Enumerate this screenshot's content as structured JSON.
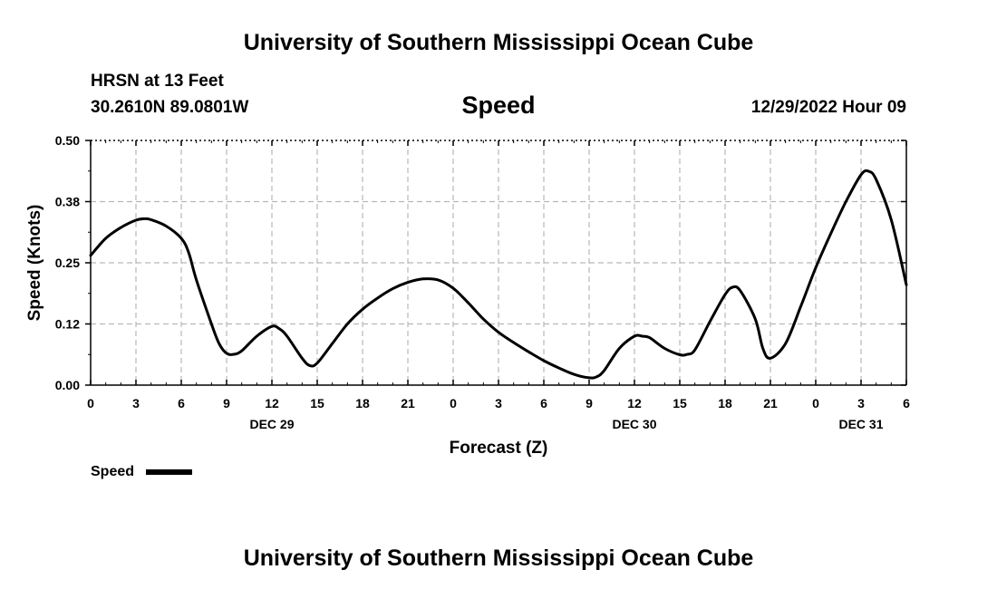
{
  "header": {
    "title": "University of Southern Mississippi Ocean Cube",
    "station": "HRSN at 13 Feet",
    "coords": "30.2610N  89.0801W",
    "param": "Speed",
    "datetime": "12/29/2022 Hour 09",
    "footer_title": "University of Southern Mississippi Ocean Cube"
  },
  "chart_data": {
    "type": "line",
    "title": "Speed",
    "xlabel": "Forecast (Z)",
    "ylabel": "Speed (Knots)",
    "ylim": [
      0,
      0.5
    ],
    "xlim": [
      0,
      54
    ],
    "y_ticks": [
      0.0,
      0.125,
      0.25,
      0.375,
      0.5
    ],
    "y_tick_labels": [
      "0.00",
      "0.12",
      "0.25",
      "0.38",
      "0.50"
    ],
    "x_ticks": [
      0,
      3,
      6,
      9,
      12,
      15,
      18,
      21,
      24,
      27,
      30,
      33,
      36,
      39,
      42,
      45,
      48,
      51,
      54
    ],
    "x_tick_labels": [
      "0",
      "3",
      "6",
      "9",
      "12",
      "15",
      "18",
      "21",
      "0",
      "3",
      "6",
      "9",
      "12",
      "15",
      "18",
      "21",
      "0",
      "3",
      "6"
    ],
    "date_labels": [
      {
        "x": 12,
        "label": "DEC 29"
      },
      {
        "x": 36,
        "label": "DEC 30"
      },
      {
        "x": 51,
        "label": "DEC 31"
      }
    ],
    "grid": true,
    "legend": {
      "placement": "bottom-left",
      "label": "Speed"
    },
    "series": [
      {
        "name": "Speed",
        "color": "#000000",
        "x": [
          0,
          1,
          2,
          3,
          3.6,
          4,
          5,
          6,
          6.5,
          7,
          8,
          8.5,
          9,
          9.5,
          10,
          11,
          12,
          12.5,
          13,
          14,
          14.5,
          15,
          16,
          17,
          18,
          19,
          20,
          21,
          22,
          23,
          24,
          25,
          26,
          27,
          28,
          29,
          30,
          31,
          32,
          33,
          33.5,
          34,
          35,
          36,
          36.5,
          37,
          38,
          39,
          39.5,
          40,
          41,
          42,
          42.5,
          43,
          44,
          44.5,
          45,
          46,
          47,
          48,
          49,
          50,
          51,
          51.5,
          52,
          53,
          54
        ],
        "values": [
          0.265,
          0.3,
          0.322,
          0.337,
          0.34,
          0.338,
          0.325,
          0.3,
          0.27,
          0.215,
          0.125,
          0.085,
          0.065,
          0.063,
          0.07,
          0.1,
          0.12,
          0.115,
          0.1,
          0.055,
          0.04,
          0.045,
          0.085,
          0.125,
          0.155,
          0.178,
          0.197,
          0.21,
          0.217,
          0.215,
          0.198,
          0.168,
          0.135,
          0.108,
          0.087,
          0.068,
          0.05,
          0.035,
          0.022,
          0.015,
          0.017,
          0.03,
          0.075,
          0.1,
          0.1,
          0.097,
          0.075,
          0.062,
          0.063,
          0.072,
          0.13,
          0.185,
          0.2,
          0.193,
          0.135,
          0.075,
          0.055,
          0.085,
          0.16,
          0.24,
          0.31,
          0.375,
          0.43,
          0.437,
          0.42,
          0.338,
          0.205
        ]
      }
    ]
  }
}
